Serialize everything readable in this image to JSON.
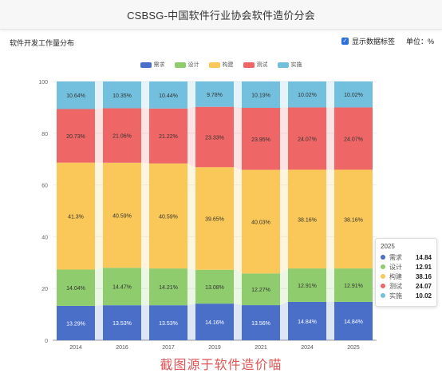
{
  "header": {
    "title": "CSBSG-中国软件行业协会软件造价分会"
  },
  "subtitle": "软件开发工作量分布",
  "controls": {
    "show_labels": "显示数据标签",
    "unit_label": "单位：",
    "unit_value": "%"
  },
  "colors": {
    "需求": "#4a6fc9",
    "设计": "#8fcc6e",
    "构建": "#fac858",
    "测试": "#ee6666",
    "实施": "#73c0de"
  },
  "chart_data": {
    "type": "bar",
    "stacked": true,
    "title": "",
    "xlabel": "",
    "ylabel": "",
    "ylim": [
      0,
      100
    ],
    "yticks": [
      0,
      20,
      40,
      60,
      80,
      100
    ],
    "legend_position": "top-center",
    "categories": [
      "2014",
      "2016",
      "2017",
      "2019",
      "2021",
      "2024",
      "2025"
    ],
    "series": [
      {
        "name": "需求",
        "values": [
          13.29,
          13.53,
          13.53,
          14.16,
          13.56,
          14.84,
          14.84
        ],
        "labels": [
          "13.29%",
          "13.53%",
          "13.53%",
          "14.16%",
          "13.56%",
          "14.84%",
          "14.84%"
        ]
      },
      {
        "name": "设计",
        "values": [
          14.04,
          14.47,
          14.21,
          13.08,
          12.27,
          12.91,
          12.91
        ],
        "labels": [
          "14.04%",
          "14.47%",
          "14.21%",
          "13.08%",
          "12.27%",
          "12.91%",
          "12.91%"
        ]
      },
      {
        "name": "构建",
        "values": [
          41.3,
          40.59,
          40.59,
          39.65,
          40.03,
          38.16,
          38.16
        ],
        "labels": [
          "41.3%",
          "40.59%",
          "40.59%",
          "39.65%",
          "40.03%",
          "38.16%",
          "38.16%"
        ]
      },
      {
        "name": "测试",
        "values": [
          20.73,
          21.06,
          21.22,
          23.33,
          23.95,
          24.07,
          24.07
        ],
        "labels": [
          "20.73%",
          "21.06%",
          "21.22%",
          "23.33%",
          "23.95%",
          "24.07%",
          "24.07%"
        ]
      },
      {
        "name": "实施",
        "values": [
          10.64,
          10.35,
          10.44,
          9.78,
          10.19,
          10.02,
          10.02
        ],
        "labels": [
          "10.64%",
          "10.35%",
          "10.44%",
          "9.78%",
          "10.19%",
          "10.02%",
          "10.02%"
        ]
      }
    ],
    "highlighted_index": 6
  },
  "tooltip": {
    "title": "2025",
    "rows": [
      {
        "name": "需求",
        "value": "14.84"
      },
      {
        "name": "设计",
        "value": "12.91"
      },
      {
        "name": "构建",
        "value": "38.16"
      },
      {
        "name": "测试",
        "value": "24.07"
      },
      {
        "name": "实施",
        "value": "10.02"
      }
    ]
  },
  "watermark": "截图源于软件造价喵"
}
